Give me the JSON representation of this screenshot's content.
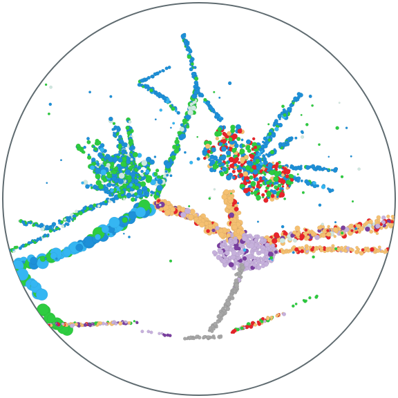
{
  "image": {
    "subject": "3d-scatter-point-cloud-in-circular-frame",
    "frame_color": "#5f6b70",
    "background": "#ffffff",
    "palette": {
      "blue": "#1e90d8",
      "sky": "#35b6f2",
      "green": "#2ecc40",
      "red": "#e8242a",
      "orange": "#f5c071",
      "lavender": "#c6b0dc",
      "purple": "#7a3fa0",
      "gray": "#a7a7a7",
      "pale": "#cfe8e0"
    }
  }
}
